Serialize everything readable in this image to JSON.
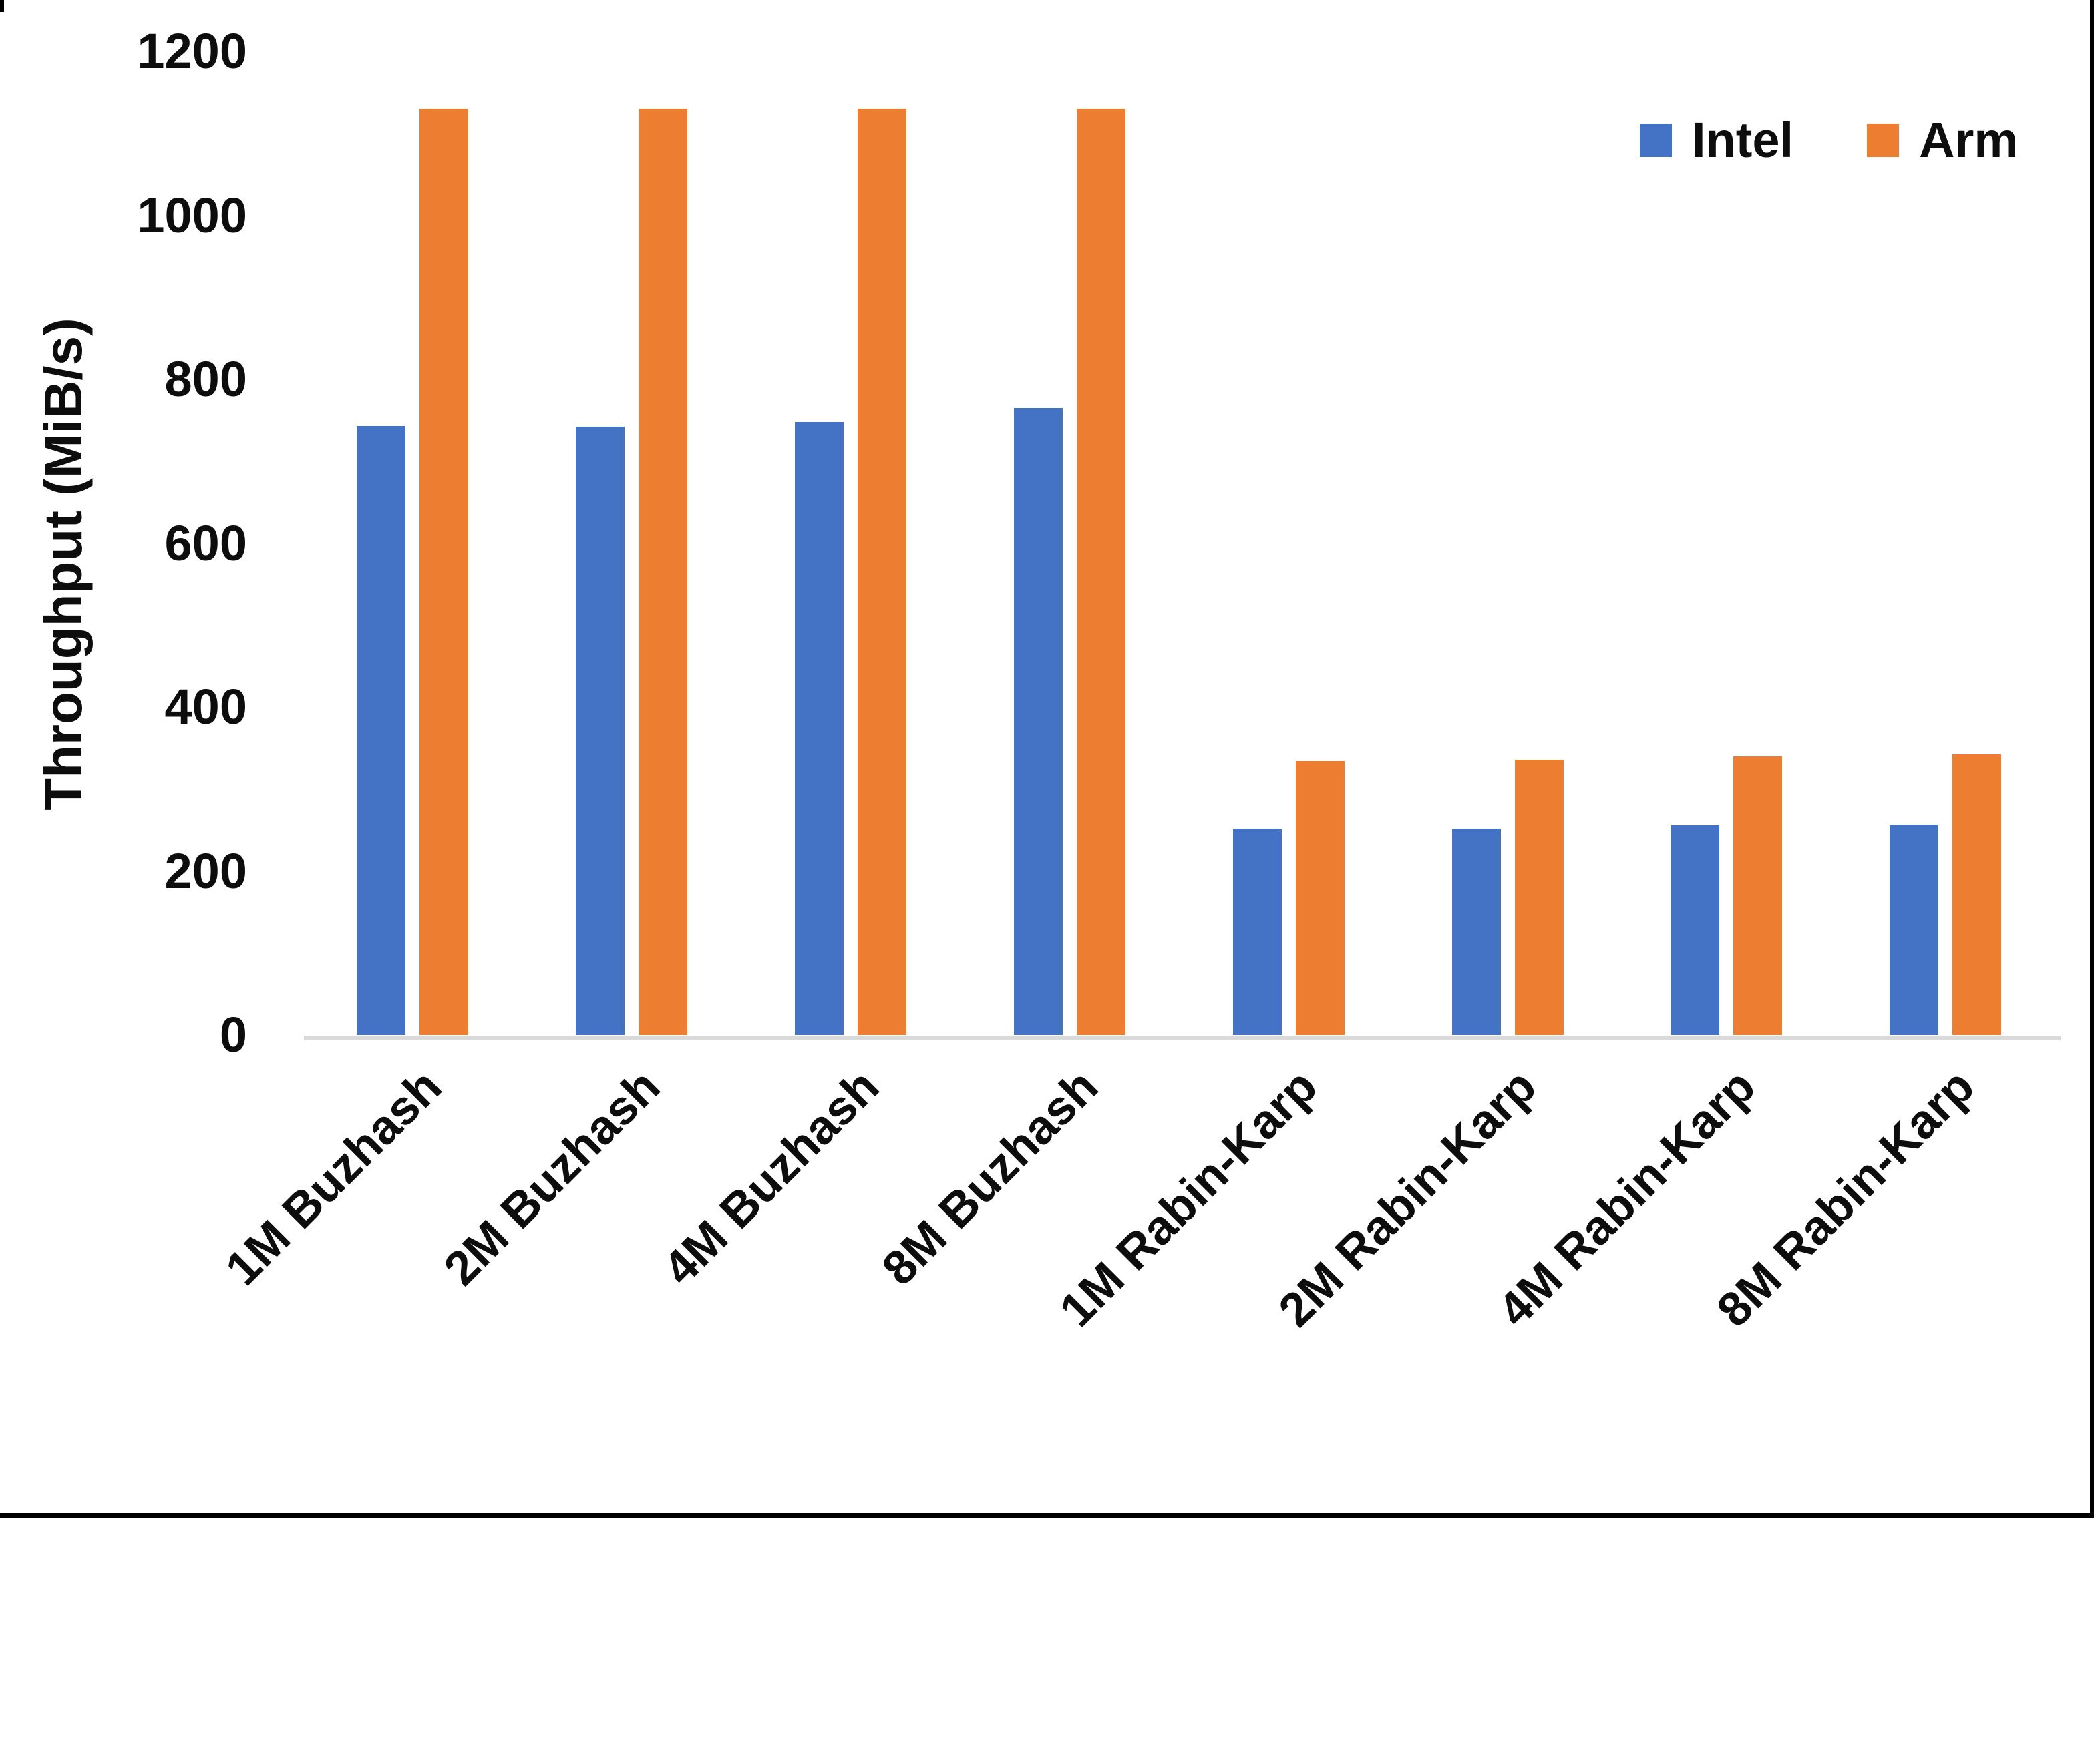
{
  "chart_data": {
    "type": "bar",
    "title": "",
    "xlabel": "",
    "ylabel": "Throughput (MiB/s)",
    "ylim": [
      0,
      1200
    ],
    "yticks": [
      0,
      200,
      400,
      600,
      800,
      1000,
      1200
    ],
    "grid": false,
    "legend_position": "top-right",
    "categories": [
      "1M Buzhash",
      "2M Buzhash",
      "4M Buzhash",
      "8M Buzhash",
      "1M Rabin-Karp",
      "2M Rabin-Karp",
      "4M Rabin-Karp",
      "8M Rabin-Karp"
    ],
    "series": [
      {
        "name": "Intel",
        "color": "#4472C4",
        "values": [
          743,
          742,
          748,
          765,
          252,
          252,
          256,
          257
        ]
      },
      {
        "name": "Arm",
        "color": "#ED7D31",
        "values": [
          1130,
          1130,
          1130,
          1130,
          334,
          336,
          340,
          342
        ]
      }
    ]
  },
  "axis": {
    "line_color": "#D9D9D9",
    "text_color": "#0d0d0d"
  }
}
